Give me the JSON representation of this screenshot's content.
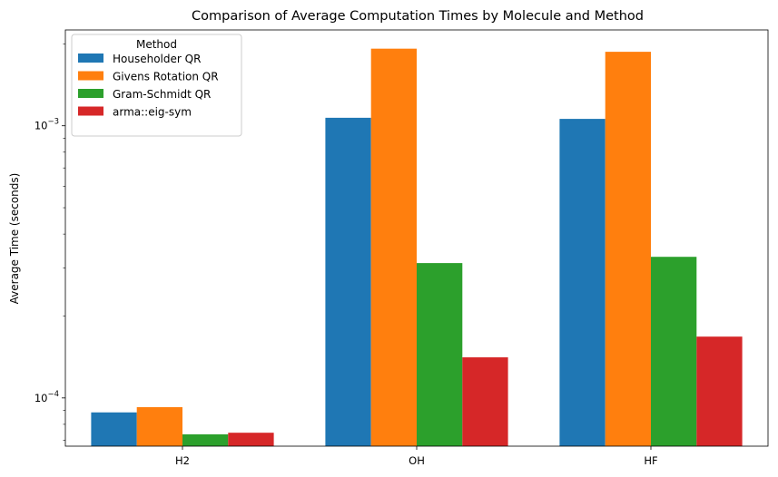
{
  "chart_data": {
    "type": "bar",
    "title": "Comparison of Average Computation Times by Molecule and Method",
    "xlabel": "",
    "ylabel": "Average Time (seconds)",
    "yscale": "log",
    "ylim": [
      6.65e-05,
      0.00225
    ],
    "categories": [
      "H2",
      "OH",
      "HF"
    ],
    "yticks": [
      {
        "value": 0.0001,
        "base": "10",
        "exp": "−4"
      },
      {
        "value": 0.001,
        "base": "10",
        "exp": "−3"
      }
    ],
    "legend": {
      "title": "Method",
      "position": "top-left"
    },
    "series": [
      {
        "name": "Householder QR",
        "color": "#1f77b4",
        "values": [
          8.85e-05,
          0.00107,
          0.00106
        ]
      },
      {
        "name": "Givens Rotation QR",
        "color": "#ff7f0e",
        "values": [
          9.25e-05,
          0.00192,
          0.00187
        ]
      },
      {
        "name": "Gram-Schmidt QR",
        "color": "#2ca02c",
        "values": [
          7.35e-05,
          0.000313,
          0.00033
        ]
      },
      {
        "name": "arma::eig-sym",
        "color": "#d62728",
        "values": [
          7.45e-05,
          0.000141,
          0.000168
        ]
      }
    ],
    "grid": false
  }
}
